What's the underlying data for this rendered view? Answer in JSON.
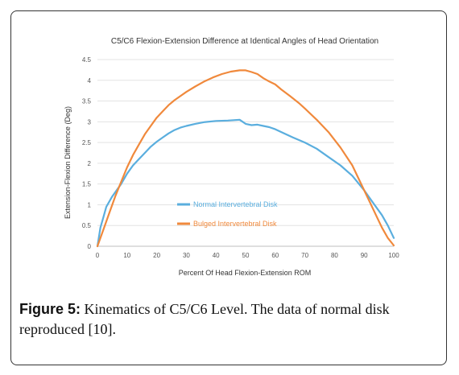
{
  "chart_data": {
    "type": "line",
    "title": "C5/C6 Flexion-Extension Difference at Identical Angles of Head Orientation",
    "xlabel": "Percent Of Head Flexion-Extension ROM",
    "ylabel": "Extension-Flexion Difference (Deg)",
    "xlim": [
      0,
      100
    ],
    "ylim": [
      0,
      4.5
    ],
    "xticks": [
      0,
      10,
      20,
      30,
      40,
      50,
      60,
      70,
      80,
      90,
      100
    ],
    "yticks": [
      0,
      0.5,
      1,
      1.5,
      2,
      2.5,
      3,
      3.5,
      4,
      4.5
    ],
    "grid": "horizontal",
    "legend": "inside-lower-center",
    "series": [
      {
        "name": "Normal Intervertebral Disk",
        "color": "#5aaede",
        "x": [
          0,
          1,
          2,
          3,
          5,
          8,
          10,
          12,
          14,
          16,
          18,
          20,
          22,
          24,
          26,
          28,
          30,
          33,
          36,
          40,
          44,
          46,
          48,
          49,
          50,
          52,
          54,
          56,
          58,
          60,
          63,
          66,
          70,
          74,
          78,
          82,
          86,
          90,
          93,
          96,
          98,
          100
        ],
        "y": [
          0.0,
          0.45,
          0.7,
          0.95,
          1.2,
          1.5,
          1.75,
          1.95,
          2.1,
          2.25,
          2.4,
          2.52,
          2.62,
          2.72,
          2.8,
          2.86,
          2.9,
          2.95,
          2.99,
          3.02,
          3.03,
          3.04,
          3.05,
          3.0,
          2.95,
          2.92,
          2.93,
          2.9,
          2.87,
          2.82,
          2.72,
          2.62,
          2.5,
          2.35,
          2.15,
          1.95,
          1.7,
          1.35,
          1.05,
          0.75,
          0.5,
          0.2
        ]
      },
      {
        "name": "Bulged Intervertebral Disk",
        "color": "#f0893c",
        "x": [
          0,
          2,
          4,
          6,
          8,
          10,
          12,
          14,
          16,
          18,
          20,
          22,
          24,
          26,
          28,
          30,
          33,
          36,
          39,
          42,
          45,
          48,
          50,
          52,
          54,
          56,
          58,
          60,
          62,
          65,
          68,
          70,
          74,
          78,
          82,
          86,
          88,
          90,
          92,
          94,
          96,
          98,
          100
        ],
        "y": [
          0.0,
          0.4,
          0.8,
          1.2,
          1.55,
          1.9,
          2.2,
          2.45,
          2.7,
          2.9,
          3.1,
          3.25,
          3.4,
          3.52,
          3.62,
          3.72,
          3.85,
          3.97,
          4.07,
          4.15,
          4.21,
          4.24,
          4.24,
          4.2,
          4.15,
          4.05,
          3.97,
          3.9,
          3.78,
          3.62,
          3.45,
          3.32,
          3.05,
          2.75,
          2.38,
          1.95,
          1.65,
          1.35,
          1.05,
          0.75,
          0.45,
          0.2,
          0.02
        ]
      }
    ]
  },
  "caption": {
    "label": "Figure 5:",
    "text": " Kinematics of C5/C6 Level. The data of normal disk reproduced [10]."
  }
}
